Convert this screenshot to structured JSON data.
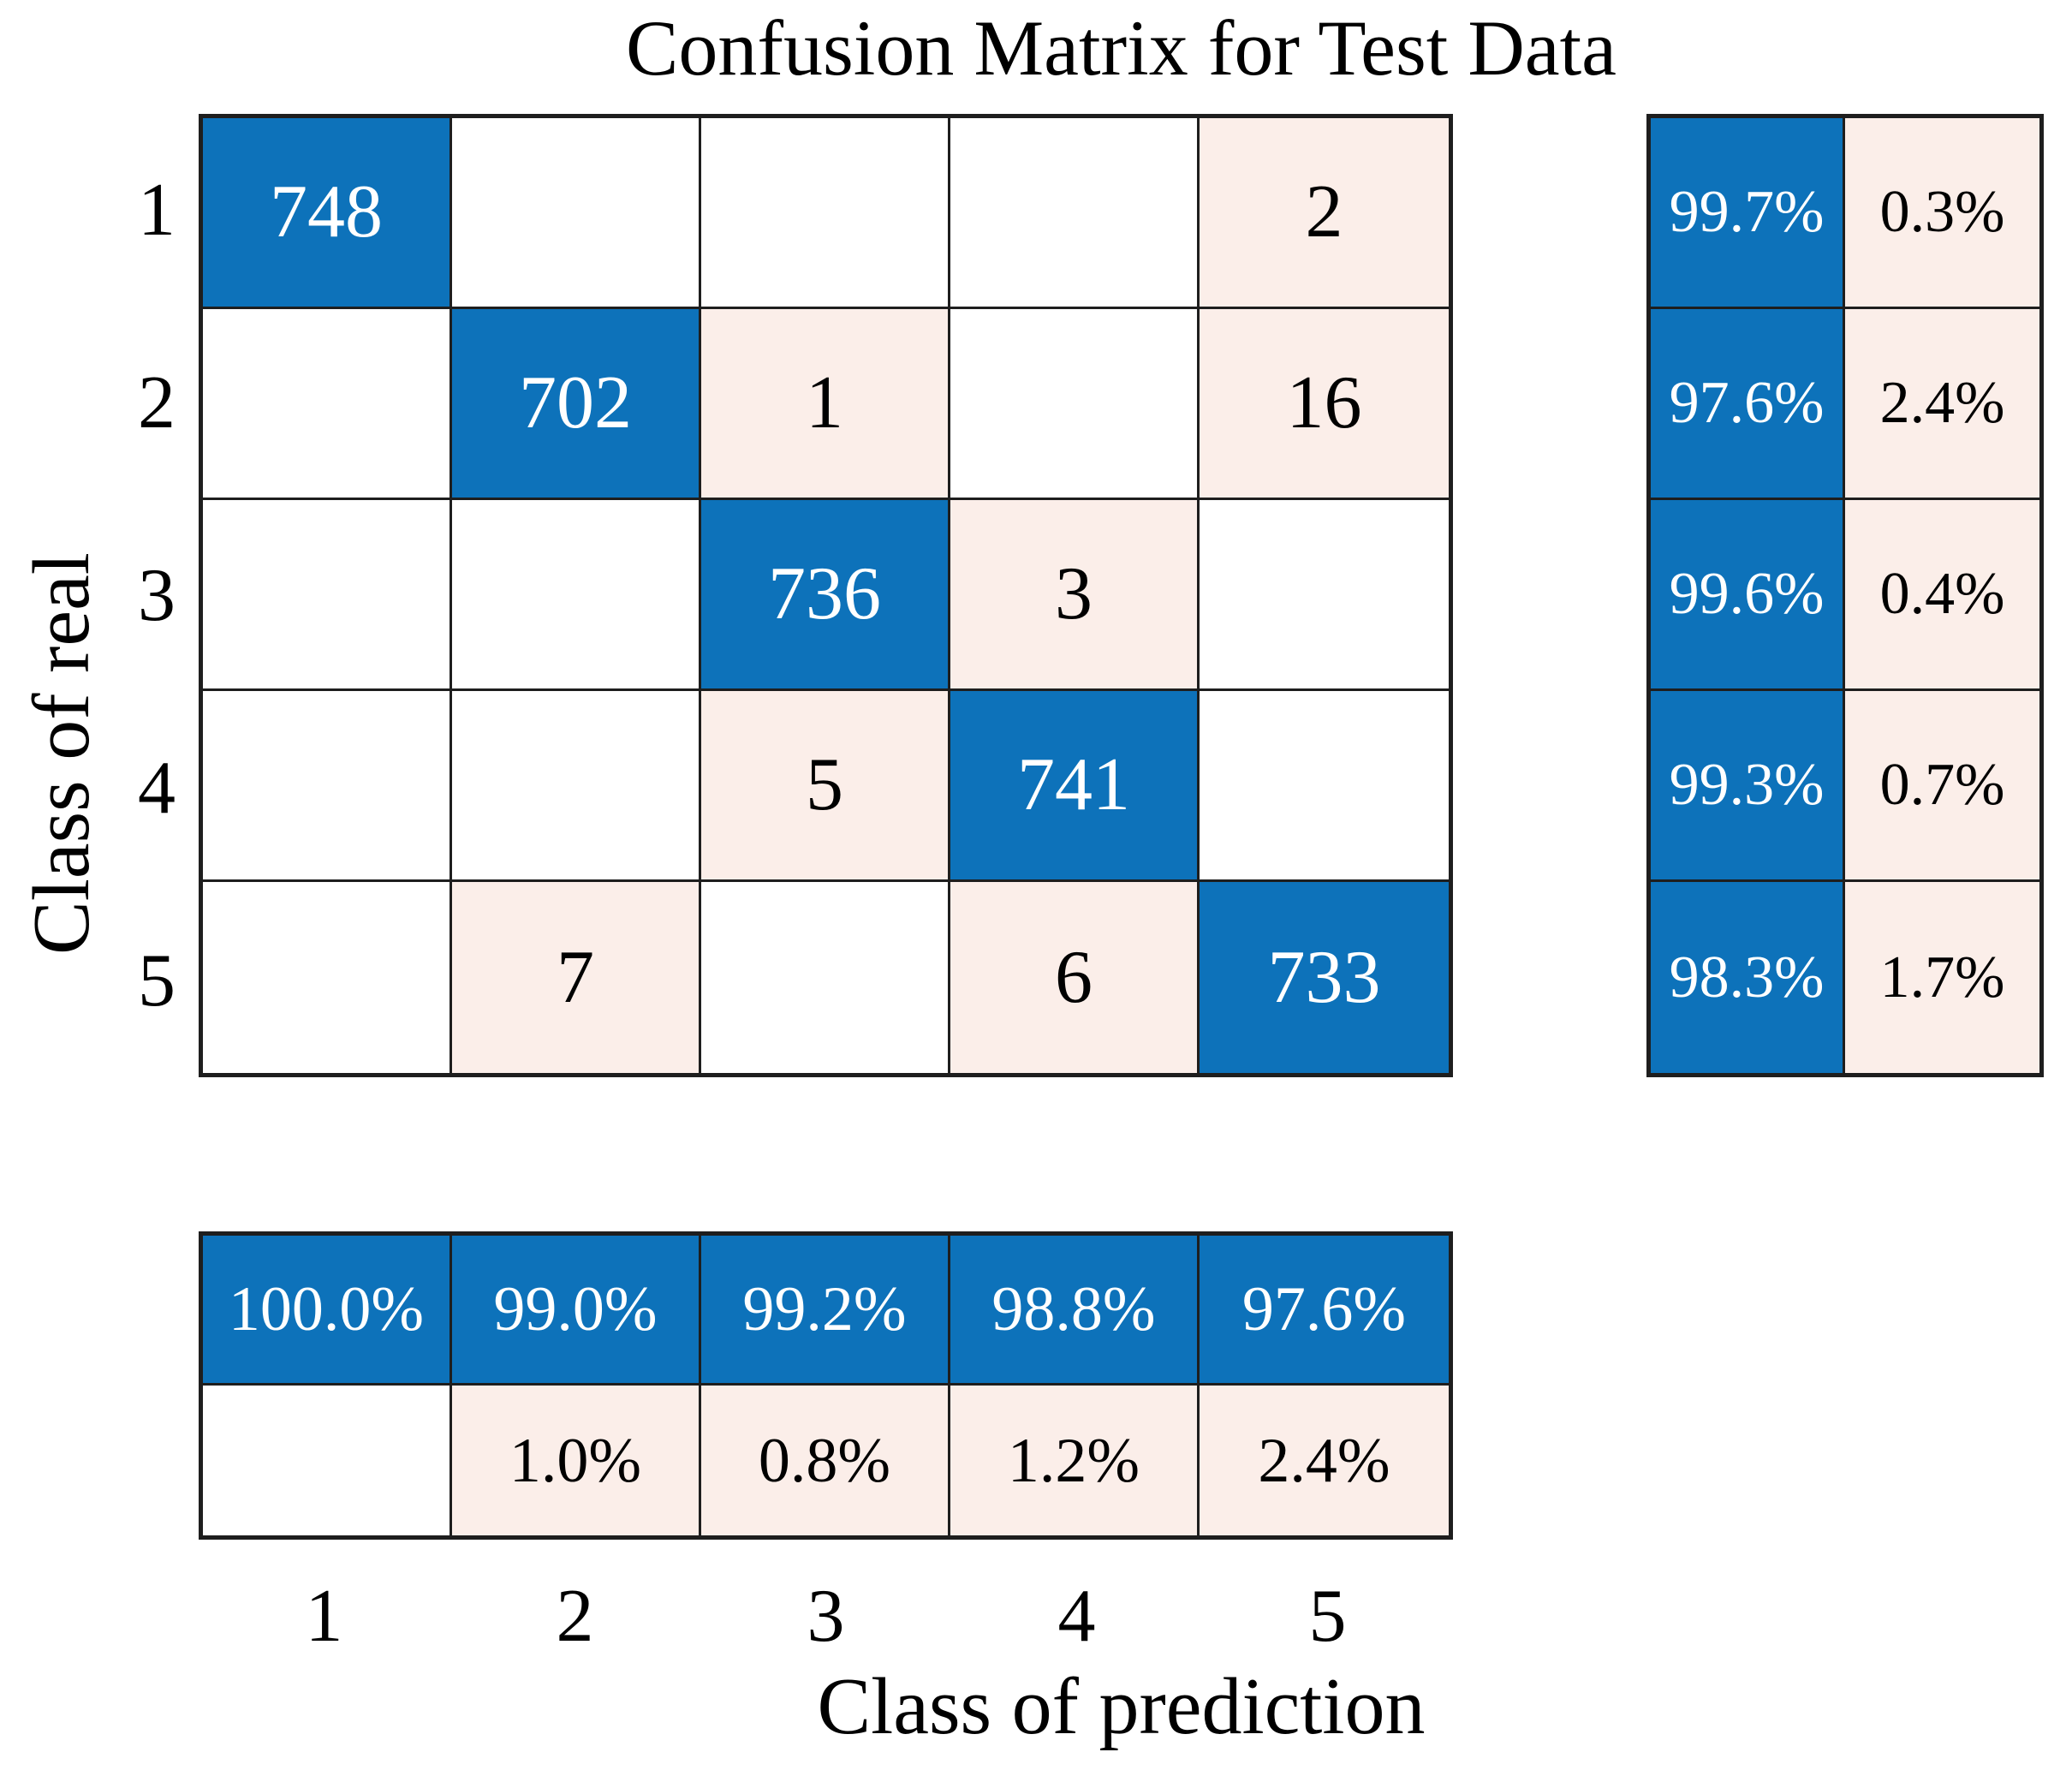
{
  "title": "Confusion Matrix for Test Data",
  "axes": {
    "x_label": "Class of prediction",
    "y_label": "Class of real",
    "x_ticks": [
      "1",
      "2",
      "3",
      "4",
      "5"
    ],
    "y_ticks": [
      "1",
      "2",
      "3",
      "4",
      "5"
    ]
  },
  "colors": {
    "diagonal_cell": "#0d72ba",
    "offdiagonal_cell": "#fbeee9",
    "empty_cell": "#ffffff",
    "gridline": "#1e1e1e",
    "text_on_blue": "#ffffff",
    "text_on_light": "#000000"
  },
  "chart_data": {
    "type": "heatmap",
    "title": "Confusion Matrix for Test Data",
    "xlabel": "Class of prediction",
    "ylabel": "Class of real",
    "classes": [
      "1",
      "2",
      "3",
      "4",
      "5"
    ],
    "matrix": [
      [
        748,
        0,
        0,
        0,
        2
      ],
      [
        0,
        702,
        1,
        0,
        16
      ],
      [
        0,
        0,
        736,
        3,
        0
      ],
      [
        0,
        0,
        5,
        741,
        0
      ],
      [
        0,
        7,
        0,
        6,
        733
      ]
    ],
    "row_correct_pct": [
      "99.7%",
      "97.6%",
      "99.6%",
      "99.3%",
      "98.3%"
    ],
    "row_error_pct": [
      "0.3%",
      "2.4%",
      "0.4%",
      "0.7%",
      "1.7%"
    ],
    "col_correct_pct": [
      "100.0%",
      "99.0%",
      "99.2%",
      "98.8%",
      "97.6%"
    ],
    "col_error_pct": [
      "",
      "1.0%",
      "0.8%",
      "1.2%",
      "2.4%"
    ],
    "legend_position": "none",
    "grid": true
  }
}
